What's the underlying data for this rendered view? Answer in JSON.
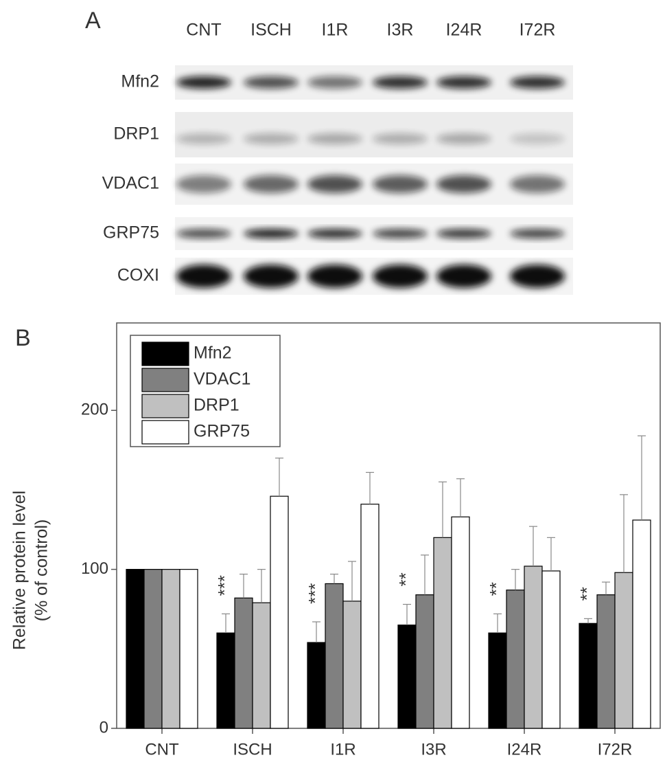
{
  "blot": {
    "panel_label": "A",
    "lanes": [
      "CNT",
      "ISCH",
      "I1R",
      "I3R",
      "I24R",
      "I72R"
    ],
    "proteins": [
      "Mfn2",
      "DRP1",
      "VDAC1",
      "GRP75",
      "COXI"
    ]
  },
  "chart_data": {
    "type": "bar",
    "panel_label": "B",
    "y_label": [
      "Relative protein level",
      "(% of control)"
    ],
    "categories": [
      "CNT",
      "ISCH",
      "I1R",
      "I3R",
      "I24R",
      "I72R"
    ],
    "series": [
      {
        "name": "Mfn2",
        "color": "#000000",
        "values": [
          100,
          60,
          54,
          65,
          60,
          66
        ],
        "errors": [
          null,
          12,
          13,
          13,
          12,
          3
        ]
      },
      {
        "name": "VDAC1",
        "color": "#808080",
        "values": [
          100,
          82,
          91,
          84,
          87,
          84
        ],
        "errors": [
          null,
          15,
          6,
          25,
          13,
          8
        ]
      },
      {
        "name": "DRP1",
        "color": "#c0c0c0",
        "values": [
          100,
          79,
          80,
          120,
          102,
          98
        ],
        "errors": [
          null,
          21,
          25,
          35,
          25,
          49
        ]
      },
      {
        "name": "GRP75",
        "color": "#ffffff",
        "values": [
          100,
          146,
          141,
          133,
          99,
          131
        ],
        "errors": [
          null,
          24,
          20,
          24,
          21,
          53
        ]
      }
    ],
    "significance": [
      null,
      "***",
      "***",
      "**",
      "**",
      "**"
    ],
    "ylim": [
      0,
      255
    ],
    "yticks": [
      0,
      100,
      200
    ],
    "legend": "top-left"
  }
}
